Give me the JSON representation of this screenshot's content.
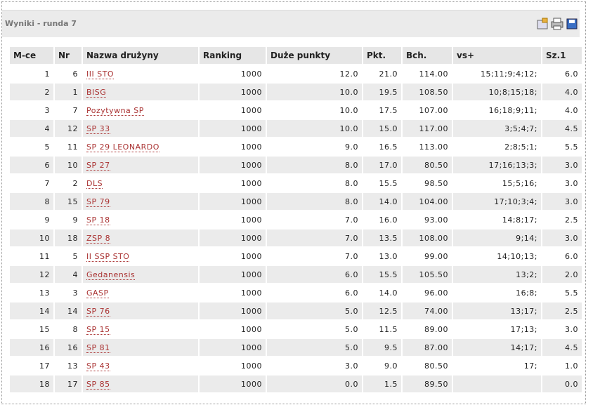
{
  "header": {
    "title": "Wyniki - runda 7"
  },
  "table": {
    "columns": [
      "M-ce",
      "Nr",
      "Nazwa drużyny",
      "Ranking",
      "Duże punkty",
      "Pkt.",
      "Bch.",
      "vs+",
      "Sz.1"
    ],
    "rows": [
      [
        "1",
        "6",
        "III STO",
        "1000",
        "12.0",
        "21.0",
        "114.00",
        "15;11;9;4;12;",
        "6.0"
      ],
      [
        "2",
        "1",
        "BISG",
        "1000",
        "10.0",
        "19.5",
        "108.50",
        "10;8;15;18;",
        "4.0"
      ],
      [
        "3",
        "7",
        "Pozytywna SP",
        "1000",
        "10.0",
        "17.5",
        "107.00",
        "16;18;9;11;",
        "4.0"
      ],
      [
        "4",
        "12",
        "SP 33",
        "1000",
        "10.0",
        "15.0",
        "117.00",
        "3;5;4;7;",
        "4.5"
      ],
      [
        "5",
        "11",
        "SP 29 LEONARDO",
        "1000",
        "9.0",
        "16.5",
        "113.00",
        "2;8;5;1;",
        "5.5"
      ],
      [
        "6",
        "10",
        "SP 27",
        "1000",
        "8.0",
        "17.0",
        "80.50",
        "17;16;13;3;",
        "3.0"
      ],
      [
        "7",
        "2",
        "DLS",
        "1000",
        "8.0",
        "15.5",
        "98.50",
        "15;5;16;",
        "3.0"
      ],
      [
        "8",
        "15",
        "SP 79",
        "1000",
        "8.0",
        "14.0",
        "104.00",
        "17;10;3;4;",
        "3.0"
      ],
      [
        "9",
        "9",
        "SP 18",
        "1000",
        "7.0",
        "16.0",
        "93.00",
        "14;8;17;",
        "2.5"
      ],
      [
        "10",
        "18",
        "ZSP 8",
        "1000",
        "7.0",
        "13.5",
        "108.00",
        "9;14;",
        "3.0"
      ],
      [
        "11",
        "5",
        "II SSP STO",
        "1000",
        "7.0",
        "13.0",
        "99.00",
        "14;10;13;",
        "6.0"
      ],
      [
        "12",
        "4",
        "Gedanensis",
        "1000",
        "6.0",
        "15.5",
        "105.50",
        "13;2;",
        "2.0"
      ],
      [
        "13",
        "3",
        "GASP",
        "1000",
        "6.0",
        "14.0",
        "96.00",
        "16;8;",
        "5.5"
      ],
      [
        "14",
        "14",
        "SP 76",
        "1000",
        "5.0",
        "12.5",
        "74.00",
        "13;17;",
        "2.5"
      ],
      [
        "15",
        "8",
        "SP 15",
        "1000",
        "5.0",
        "11.5",
        "89.00",
        "17;13;",
        "3.0"
      ],
      [
        "16",
        "16",
        "SP 81",
        "1000",
        "5.0",
        "9.5",
        "87.00",
        "14;17;",
        "4.5"
      ],
      [
        "17",
        "13",
        "SP 43",
        "1000",
        "3.0",
        "9.0",
        "80.50",
        "17;",
        "1.0"
      ],
      [
        "18",
        "17",
        "SP 85",
        "1000",
        "0.0",
        "1.5",
        "89.50",
        "",
        "0.0"
      ]
    ]
  }
}
